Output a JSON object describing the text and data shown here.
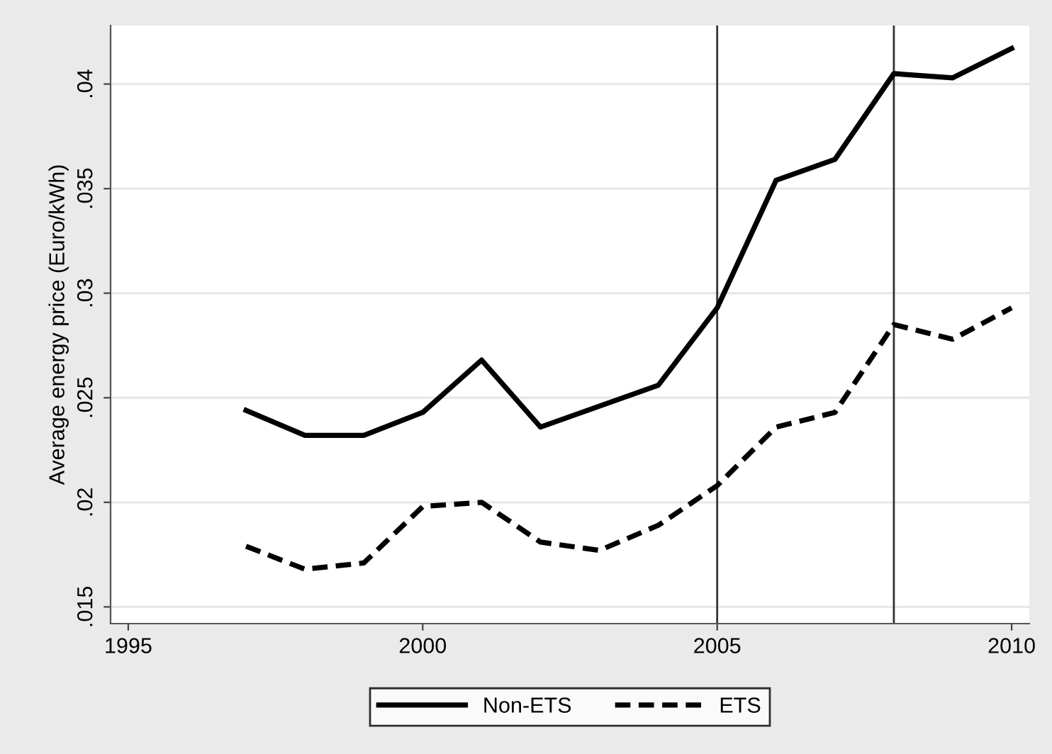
{
  "chart_data": {
    "type": "line",
    "ylabel": "Average energy price (Euro/kWh)",
    "x": [
      1997,
      1998,
      1999,
      2000,
      2001,
      2002,
      2003,
      2004,
      2005,
      2006,
      2007,
      2008,
      2009,
      2010
    ],
    "series": [
      {
        "name": "Non-ETS",
        "color": "#000000",
        "line_style": "solid",
        "values": [
          0.0244,
          0.0232,
          0.0232,
          0.0243,
          0.0268,
          0.0236,
          0.0246,
          0.0256,
          0.0293,
          0.0354,
          0.0364,
          0.0405,
          0.0403,
          0.0417
        ]
      },
      {
        "name": "ETS",
        "color": "#000000",
        "line_style": "dashed",
        "values": [
          0.0179,
          0.0168,
          0.0171,
          0.0198,
          0.02,
          0.0181,
          0.0177,
          0.0189,
          0.0208,
          0.0236,
          0.0243,
          0.0285,
          0.0278,
          0.0293
        ]
      }
    ],
    "xlim": [
      1994.7,
      2010.3
    ],
    "xticks": [
      1995,
      2000,
      2005,
      2010
    ],
    "ylim": [
      0.0142,
      0.0428
    ],
    "yticks": [
      {
        "value": 0.015,
        "label": ".015"
      },
      {
        "value": 0.02,
        "label": ".02"
      },
      {
        "value": 0.025,
        "label": ".025"
      },
      {
        "value": 0.03,
        "label": ".03"
      },
      {
        "value": 0.035,
        "label": ".035"
      },
      {
        "value": 0.04,
        "label": ".04"
      }
    ],
    "ref_lines": [
      {
        "axis": "x",
        "value": 2005,
        "color": "#333333"
      },
      {
        "axis": "x",
        "value": 2008,
        "color": "#333333"
      }
    ],
    "grid": "y",
    "legend": "bottom"
  }
}
